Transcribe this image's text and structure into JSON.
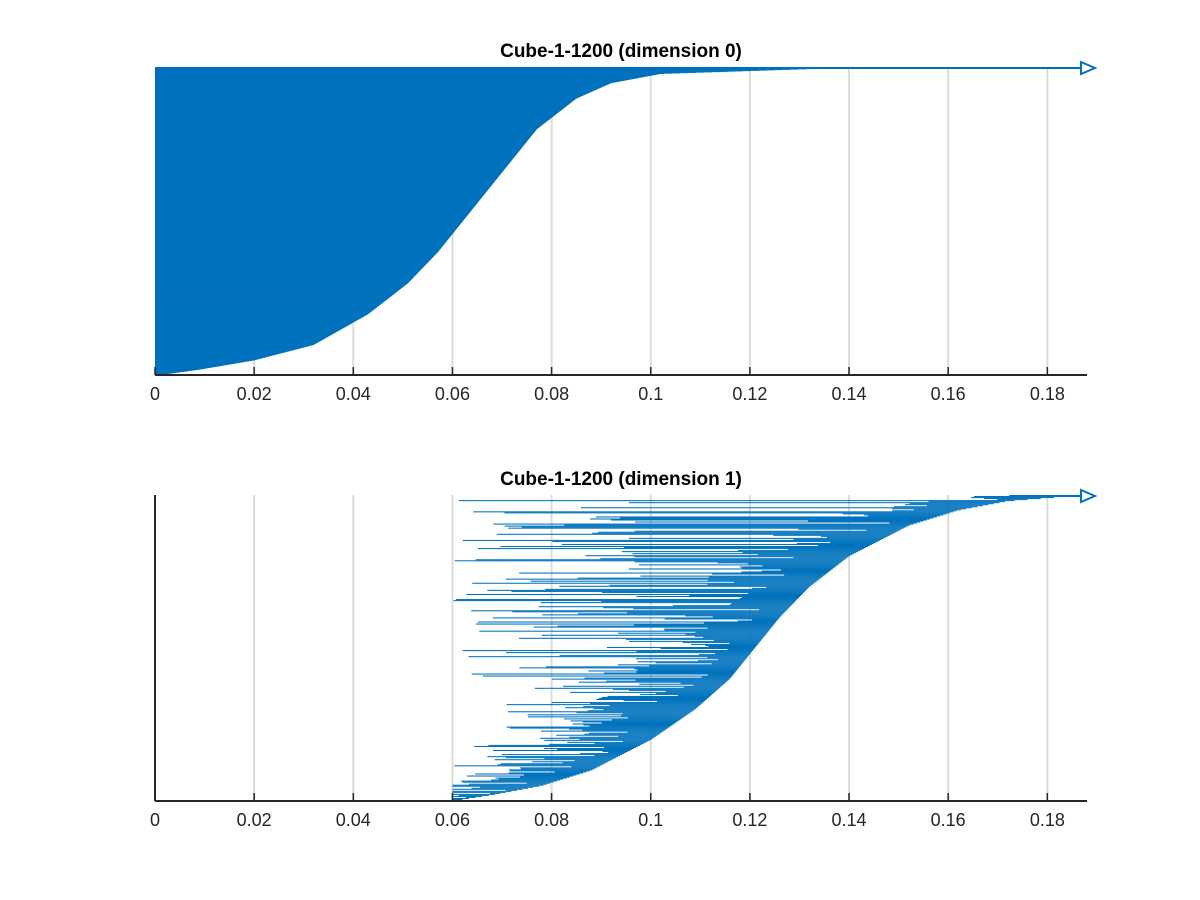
{
  "chart_data": [
    {
      "type": "barcode",
      "title": "Cube-1-1200 (dimension 0)",
      "xlabel": "",
      "ylabel": "",
      "xlim": [
        0,
        0.188
      ],
      "xticks": [
        0,
        0.02,
        0.04,
        0.06,
        0.08,
        0.1,
        0.12,
        0.14,
        0.16,
        0.18
      ],
      "xtick_labels": [
        "0",
        "0.02",
        "0.04",
        "0.06",
        "0.08",
        "0.1",
        "0.12",
        "0.14",
        "0.16",
        "0.18"
      ],
      "grid": "vertical",
      "bar_color": "#0072BD",
      "bar_count": 1200,
      "infinite_bars": 1,
      "deaths_quantiles": {
        "q": [
          0,
          0.02,
          0.05,
          0.1,
          0.2,
          0.3,
          0.4,
          0.5,
          0.6,
          0.7,
          0.8,
          0.9,
          0.95,
          0.98,
          1.0
        ],
        "death": [
          0.0,
          0.009,
          0.02,
          0.032,
          0.043,
          0.051,
          0.057,
          0.062,
          0.067,
          0.072,
          0.077,
          0.085,
          0.092,
          0.102,
          0.14
        ]
      }
    },
    {
      "type": "barcode",
      "title": "Cube-1-1200 (dimension 1)",
      "xlabel": "",
      "ylabel": "",
      "xlim": [
        0,
        0.188
      ],
      "xticks": [
        0,
        0.02,
        0.04,
        0.06,
        0.08,
        0.1,
        0.12,
        0.14,
        0.16,
        0.18
      ],
      "xtick_labels": [
        "0",
        "0.02",
        "0.04",
        "0.06",
        "0.08",
        "0.1",
        "0.12",
        "0.14",
        "0.16",
        "0.18"
      ],
      "grid": "vertical",
      "bar_color": "#0072BD",
      "bar_count": 300,
      "infinite_bars": 1,
      "births_range": [
        0.06,
        0.098
      ],
      "deaths_quantiles": {
        "q": [
          0,
          0.02,
          0.05,
          0.1,
          0.2,
          0.3,
          0.4,
          0.5,
          0.6,
          0.7,
          0.8,
          0.9,
          0.95,
          0.98,
          1.0
        ],
        "death": [
          0.06,
          0.068,
          0.078,
          0.088,
          0.1,
          0.109,
          0.116,
          0.121,
          0.126,
          0.132,
          0.14,
          0.152,
          0.162,
          0.172,
          0.188
        ]
      }
    }
  ]
}
